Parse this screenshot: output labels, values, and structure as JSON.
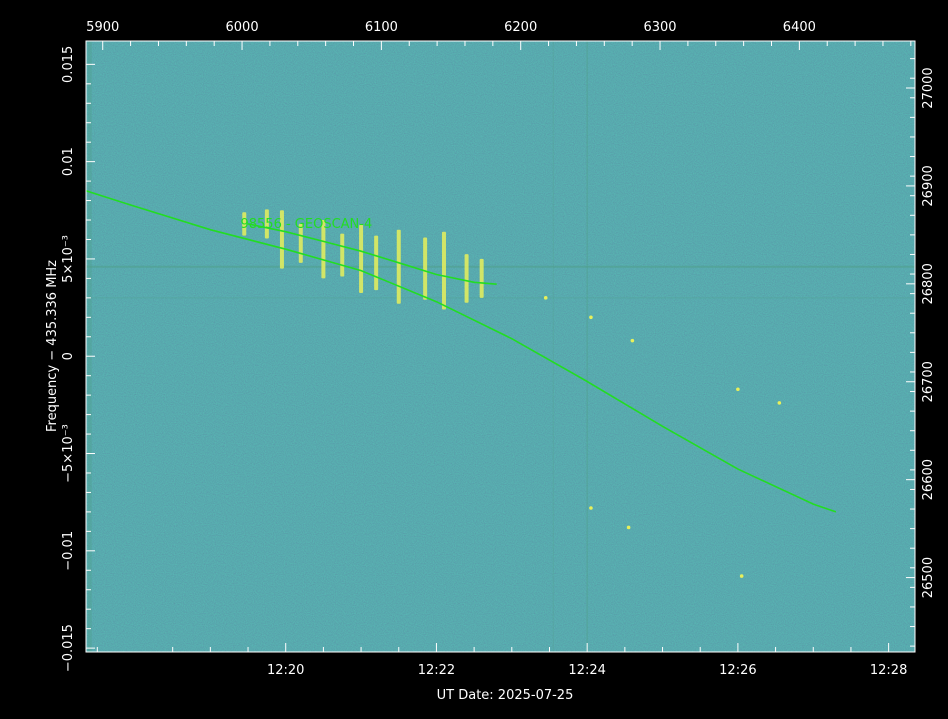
{
  "chart_data": {
    "type": "waterfall-spectrogram",
    "xlabel": "UT Date: 2025-07-25",
    "ylabel": "Frequency − 435.336 MHz",
    "x_bottom": {
      "unit": "minutes after 12:00 UT",
      "range": [
        17.35,
        28.35
      ],
      "ticks": [
        20,
        22,
        24,
        26,
        28
      ],
      "tick_labels": [
        "12:20",
        "12:22",
        "12:24",
        "12:26",
        "12:28"
      ]
    },
    "x_top": {
      "unit": "seconds",
      "range": [
        5888,
        6483
      ],
      "ticks": [
        5900,
        6000,
        6100,
        6200,
        6300,
        6400
      ],
      "tick_labels": [
        "5900",
        "6000",
        "6100",
        "6200",
        "6300",
        "6400"
      ]
    },
    "y_left": {
      "unit": "MHz offset",
      "range": [
        -0.0152,
        0.0162
      ],
      "ticks": [
        -0.015,
        -0.01,
        -0.005,
        0,
        0.005,
        0.01,
        0.015
      ],
      "tick_labels": [
        "−0.015",
        "−0.01",
        "−5×10⁻³",
        "0",
        "5×10⁻³",
        "0.01",
        "0.015"
      ]
    },
    "y_right": {
      "unit": "kHz",
      "range": [
        26424,
        27048
      ],
      "ticks": [
        26500,
        26600,
        26700,
        26800,
        26900,
        27000
      ],
      "tick_labels": [
        "26500",
        "26600",
        "26700",
        "26800",
        "26900",
        "27000"
      ]
    },
    "series": [
      {
        "name": "98556 - GEOSCAN-4",
        "color": "#22dd22",
        "points": [
          [
            17.35,
            0.0085
          ],
          [
            18.0,
            0.0077
          ],
          [
            19.0,
            0.0065
          ],
          [
            20.0,
            0.0055
          ],
          [
            21.0,
            0.0044
          ],
          [
            22.0,
            0.0028
          ],
          [
            23.0,
            0.0009
          ],
          [
            24.0,
            -0.0013
          ],
          [
            25.0,
            -0.0036
          ],
          [
            26.0,
            -0.0058
          ],
          [
            27.0,
            -0.0076
          ],
          [
            27.3,
            -0.008
          ]
        ]
      },
      {
        "name": "",
        "color": "#22dd22",
        "points": [
          [
            19.5,
            0.0068
          ],
          [
            20.0,
            0.0064
          ],
          [
            20.5,
            0.0059
          ],
          [
            21.0,
            0.0054
          ],
          [
            21.5,
            0.0048
          ],
          [
            22.0,
            0.0042
          ],
          [
            22.5,
            0.0038
          ],
          [
            22.8,
            0.0037
          ]
        ]
      }
    ],
    "bursts": [
      {
        "x": 19.45,
        "y": 0.0068,
        "h": 0.0012
      },
      {
        "x": 19.75,
        "y": 0.0068,
        "h": 0.0015
      },
      {
        "x": 19.95,
        "y": 0.006,
        "h": 0.003
      },
      {
        "x": 20.2,
        "y": 0.0058,
        "h": 0.002
      },
      {
        "x": 20.5,
        "y": 0.0055,
        "h": 0.003
      },
      {
        "x": 20.75,
        "y": 0.0052,
        "h": 0.0022
      },
      {
        "x": 21.0,
        "y": 0.005,
        "h": 0.0035
      },
      {
        "x": 21.2,
        "y": 0.0048,
        "h": 0.0028
      },
      {
        "x": 21.5,
        "y": 0.0046,
        "h": 0.0038
      },
      {
        "x": 21.85,
        "y": 0.0045,
        "h": 0.0032
      },
      {
        "x": 22.1,
        "y": 0.0044,
        "h": 0.004
      },
      {
        "x": 22.4,
        "y": 0.004,
        "h": 0.0025
      },
      {
        "x": 22.6,
        "y": 0.004,
        "h": 0.002
      }
    ],
    "dots": [
      {
        "x": 24.05,
        "y": 0.002
      },
      {
        "x": 24.6,
        "y": 0.0008
      },
      {
        "x": 26.0,
        "y": -0.0017
      },
      {
        "x": 24.05,
        "y": -0.0078
      },
      {
        "x": 24.55,
        "y": -0.0088
      },
      {
        "x": 26.05,
        "y": -0.0113
      },
      {
        "x": 26.55,
        "y": -0.0024
      },
      {
        "x": 23.45,
        "y": 0.003
      }
    ],
    "colors": {
      "background": "#000000",
      "plot_fill": "#2a6b7a",
      "noise_dark": "#1f4d6a",
      "noise_light": "#3a8a78",
      "signal": "#22dd22",
      "burst": "#e8f05a",
      "axes": "#ffffff"
    }
  }
}
